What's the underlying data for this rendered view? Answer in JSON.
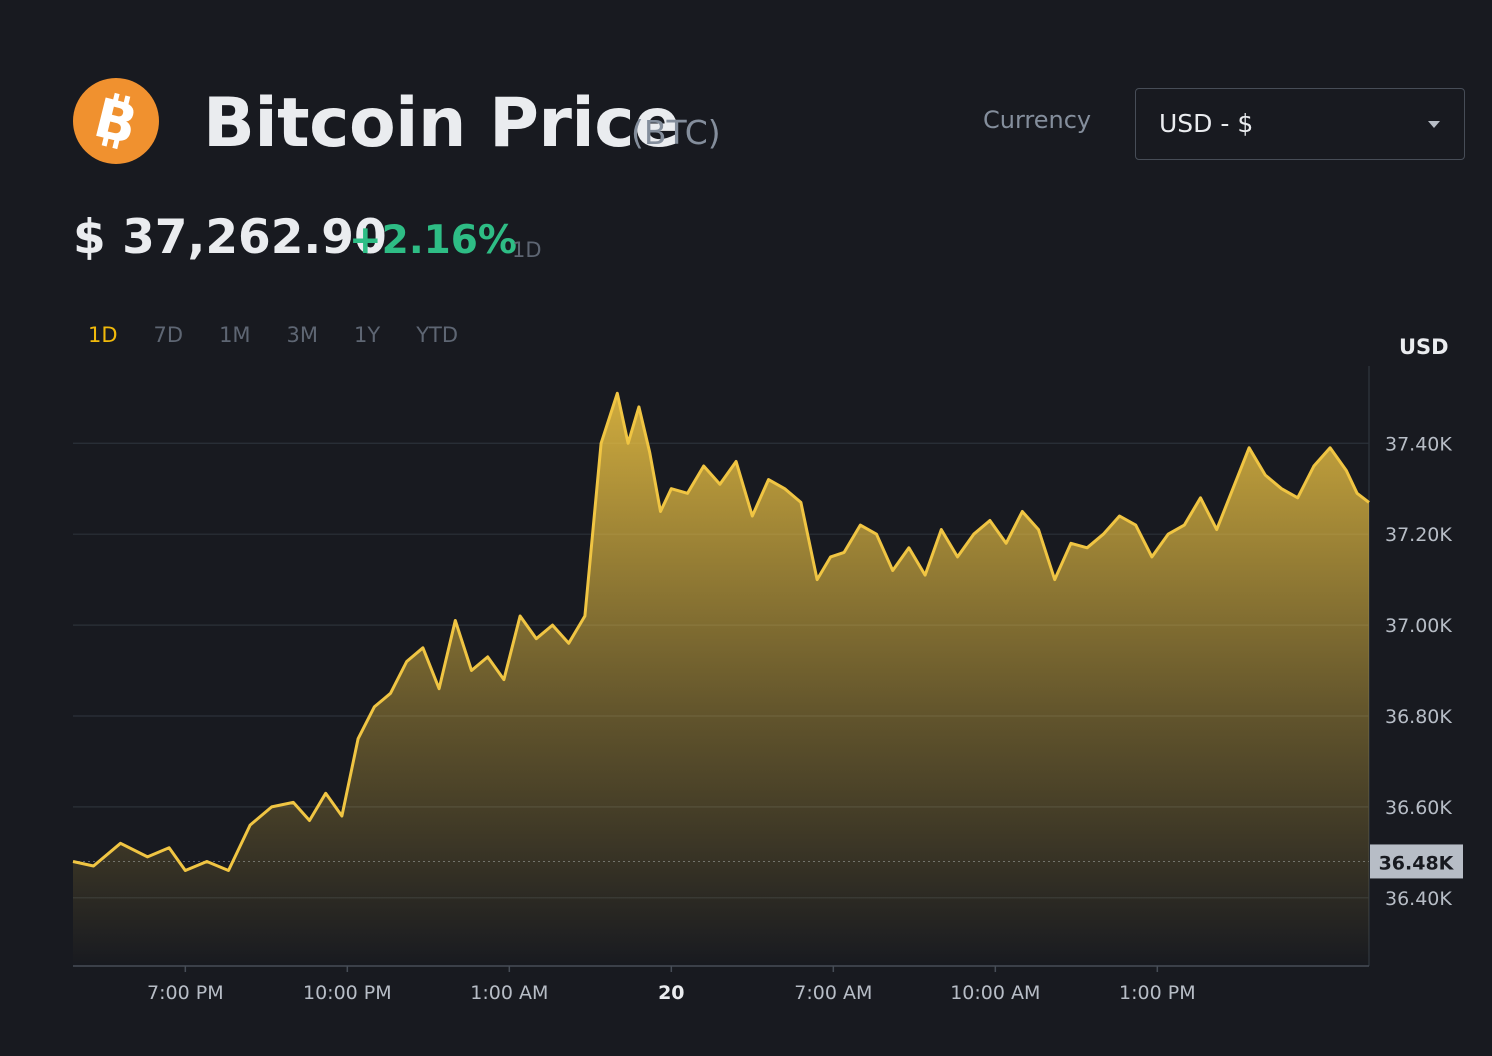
{
  "header": {
    "logo_icon": "bitcoin-icon",
    "title": "Bitcoin Price",
    "symbol": "(BTC)",
    "currency_label": "Currency",
    "currency_value": "USD - $"
  },
  "summary": {
    "price": "$ 37,262.90",
    "change": "+2.16%",
    "period": "1D"
  },
  "ranges": [
    "1D",
    "7D",
    "1M",
    "3M",
    "1Y",
    "YTD"
  ],
  "active_range": "1D",
  "colors": {
    "accent": "#f0b90b",
    "positive": "#2ebd85",
    "line": "#f0c543",
    "background": "#181a20"
  },
  "chart_data": {
    "type": "area",
    "y_unit": "USD",
    "ylim": [
      36.25,
      37.57
    ],
    "y_ticks": [
      37.4,
      37.2,
      37.0,
      36.8,
      36.6,
      36.4
    ],
    "y_tick_labels": [
      "37.40K",
      "37.20K",
      "37.00K",
      "36.80K",
      "36.60K",
      "36.40K"
    ],
    "current_marker": {
      "value": 36.48,
      "label": "36.48K"
    },
    "x_range": [
      16.92,
      40.92
    ],
    "x_ticks": [
      {
        "value": 19,
        "label": "7:00 PM",
        "bold": false
      },
      {
        "value": 22,
        "label": "10:00 PM",
        "bold": false
      },
      {
        "value": 25,
        "label": "1:00 AM",
        "bold": false
      },
      {
        "value": 28,
        "label": "20",
        "bold": true
      },
      {
        "value": 31,
        "label": "7:00 AM",
        "bold": false
      },
      {
        "value": 34,
        "label": "10:00 AM",
        "bold": false
      },
      {
        "value": 37,
        "label": "1:00 PM",
        "bold": false
      }
    ],
    "grid": true,
    "series": [
      {
        "x": [
          16.92,
          17.3,
          17.8,
          18.3,
          18.7,
          19.0,
          19.4,
          19.8,
          20.2,
          20.6,
          21.0,
          21.3,
          21.6,
          21.9,
          22.2,
          22.5,
          22.8,
          23.1,
          23.4,
          23.7,
          24.0,
          24.3,
          24.6,
          24.9,
          25.2,
          25.5,
          25.8,
          26.1,
          26.4,
          26.7,
          27.0,
          27.2,
          27.4,
          27.6,
          27.8,
          28.0,
          28.3,
          28.6,
          28.9,
          29.2,
          29.5,
          29.8,
          30.1,
          30.4,
          30.7,
          30.95,
          31.2,
          31.5,
          31.8,
          32.1,
          32.4,
          32.7,
          33.0,
          33.3,
          33.6,
          33.9,
          34.2,
          34.5,
          34.8,
          35.1,
          35.4,
          35.7,
          36.0,
          36.3,
          36.6,
          36.9,
          37.2,
          37.5,
          37.8,
          38.1,
          38.4,
          38.7,
          39.0,
          39.3,
          39.6,
          39.9,
          40.2,
          40.5,
          40.7,
          40.92
        ],
        "values": [
          36.48,
          36.47,
          36.52,
          36.49,
          36.51,
          36.46,
          36.48,
          36.46,
          36.56,
          36.6,
          36.61,
          36.57,
          36.63,
          36.58,
          36.75,
          36.82,
          36.85,
          36.92,
          36.95,
          36.86,
          37.01,
          36.9,
          36.93,
          36.88,
          37.02,
          36.97,
          37.0,
          36.96,
          37.02,
          37.4,
          37.51,
          37.4,
          37.48,
          37.38,
          37.25,
          37.3,
          37.29,
          37.35,
          37.31,
          37.36,
          37.24,
          37.32,
          37.3,
          37.27,
          37.1,
          37.15,
          37.16,
          37.22,
          37.2,
          37.12,
          37.17,
          37.11,
          37.21,
          37.15,
          37.2,
          37.23,
          37.18,
          37.25,
          37.21,
          37.1,
          37.18,
          37.17,
          37.2,
          37.24,
          37.22,
          37.15,
          37.2,
          37.22,
          37.28,
          37.21,
          37.3,
          37.39,
          37.33,
          37.3,
          37.28,
          37.35,
          37.39,
          37.34,
          37.29,
          37.27
        ]
      }
    ]
  }
}
